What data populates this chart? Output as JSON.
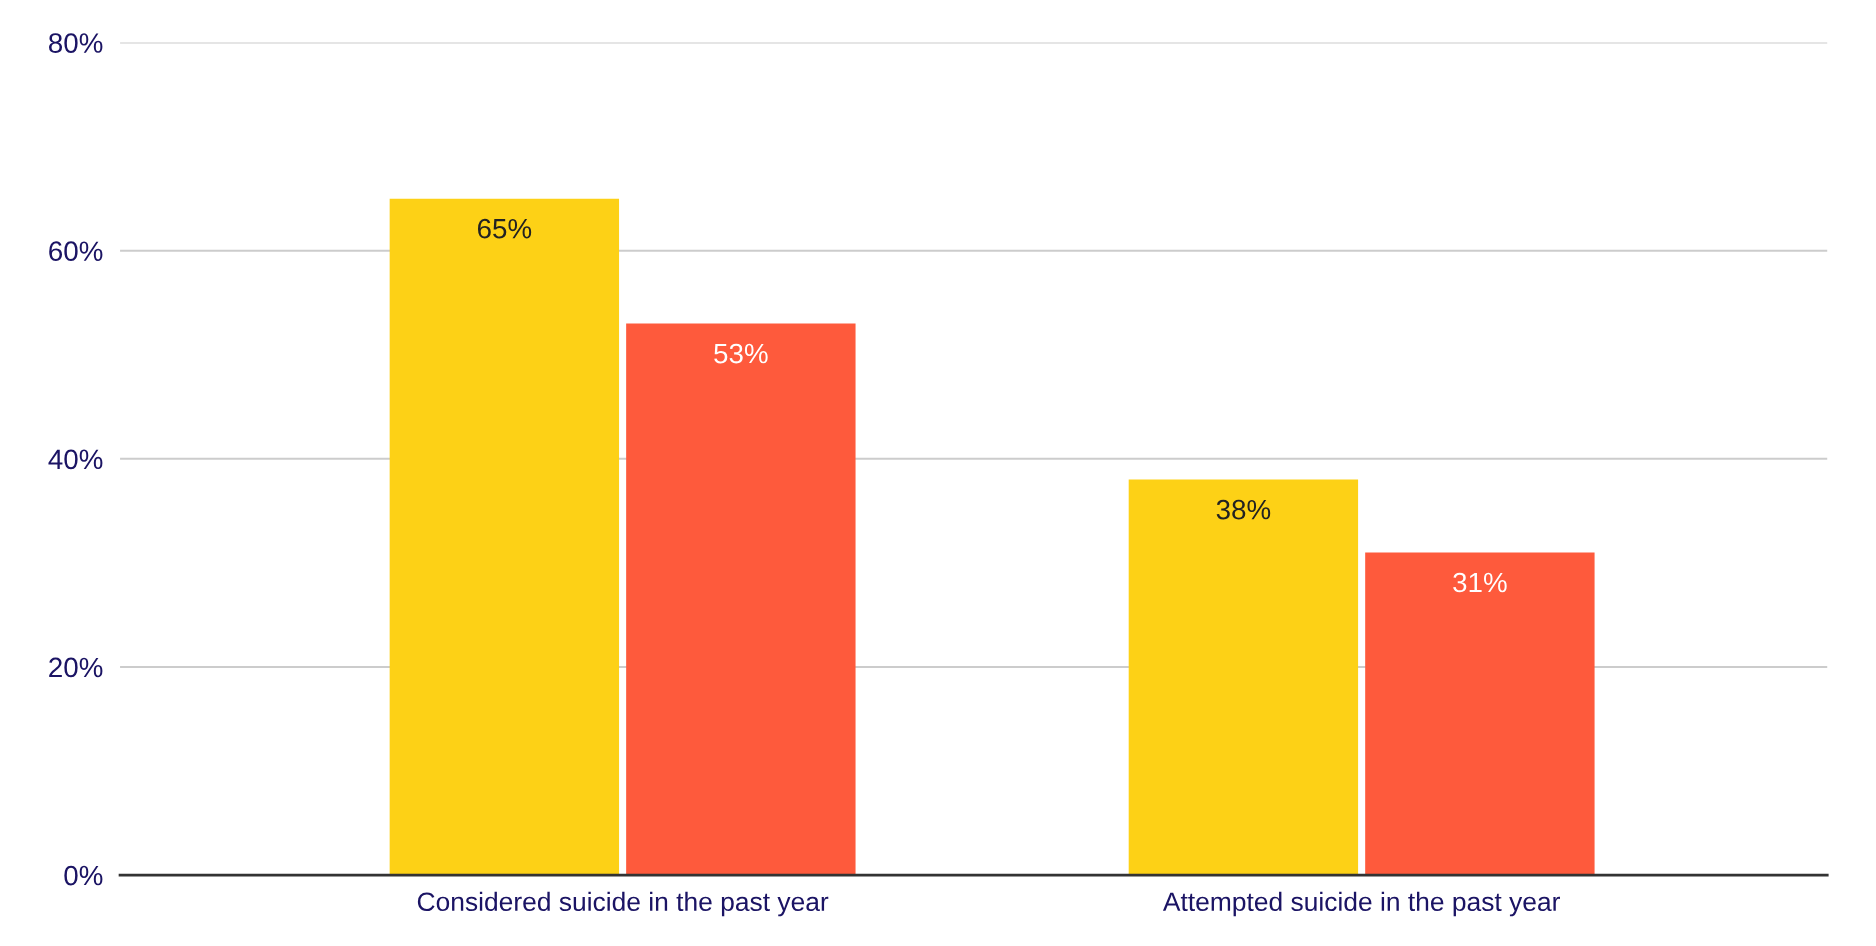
{
  "chart_data": {
    "type": "bar",
    "categories": [
      "Considered suicide in the past year",
      "Attempted suicide in the past year"
    ],
    "series": [
      {
        "color": "#fdd116",
        "values": [
          65,
          38
        ],
        "value_labels": [
          "65%",
          "38%"
        ]
      },
      {
        "color": "#fe5a3c",
        "values": [
          53,
          31
        ],
        "value_labels": [
          "53%",
          "31%"
        ]
      }
    ],
    "ylim": [
      0,
      80
    ],
    "yticks": [
      {
        "value": 0,
        "label": "0%"
      },
      {
        "value": 20,
        "label": "20%"
      },
      {
        "value": 40,
        "label": "40%"
      },
      {
        "value": 60,
        "label": "60%"
      },
      {
        "value": 80,
        "label": "80%"
      }
    ],
    "grid": "y"
  }
}
